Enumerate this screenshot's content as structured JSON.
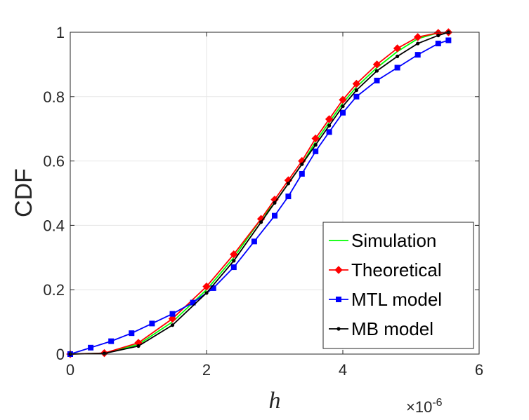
{
  "chart_data": {
    "type": "line",
    "title": "",
    "xlabel": "h",
    "ylabel": "CDF",
    "x_multiplier_label": "×10",
    "x_multiplier_exp": "-6",
    "xlim": [
      0,
      6
    ],
    "ylim": [
      0,
      1
    ],
    "xticks": [
      0,
      2,
      4,
      6
    ],
    "xtick_labels": [
      "0",
      "2",
      "4",
      "6"
    ],
    "yticks": [
      0,
      0.2,
      0.4,
      0.6,
      0.8,
      1
    ],
    "ytick_labels": [
      "0",
      "0.2",
      "0.4",
      "0.6",
      "0.8",
      "1"
    ],
    "grid": true,
    "legend_position": "bottom-right",
    "series": [
      {
        "name": "Simulation",
        "color": "#00ff00",
        "marker": "none",
        "x": [
          0,
          0.5,
          1.0,
          1.5,
          2.0,
          2.4,
          2.8,
          3.0,
          3.2,
          3.4,
          3.6,
          3.8,
          4.0,
          4.2,
          4.5,
          4.8,
          5.1,
          5.4,
          5.55
        ],
        "y": [
          0,
          0.003,
          0.03,
          0.1,
          0.2,
          0.3,
          0.42,
          0.47,
          0.53,
          0.59,
          0.66,
          0.72,
          0.78,
          0.83,
          0.89,
          0.94,
          0.98,
          0.998,
          1.0
        ]
      },
      {
        "name": "Theoretical",
        "color": "#ff0000",
        "marker": "diamond",
        "x": [
          0,
          0.5,
          1.0,
          1.5,
          2.0,
          2.4,
          2.8,
          3.0,
          3.2,
          3.4,
          3.6,
          3.8,
          4.0,
          4.2,
          4.5,
          4.8,
          5.1,
          5.4,
          5.55
        ],
        "y": [
          0,
          0.003,
          0.035,
          0.11,
          0.21,
          0.31,
          0.42,
          0.48,
          0.54,
          0.6,
          0.67,
          0.73,
          0.79,
          0.84,
          0.9,
          0.95,
          0.985,
          0.998,
          1.0
        ]
      },
      {
        "name": "MTL model",
        "color": "#0000ff",
        "marker": "square",
        "x": [
          0,
          0.3,
          0.6,
          0.9,
          1.2,
          1.5,
          1.8,
          2.1,
          2.4,
          2.7,
          3.0,
          3.2,
          3.4,
          3.6,
          3.8,
          4.0,
          4.2,
          4.5,
          4.8,
          5.1,
          5.4,
          5.55
        ],
        "y": [
          0,
          0.02,
          0.04,
          0.065,
          0.095,
          0.125,
          0.16,
          0.205,
          0.27,
          0.35,
          0.43,
          0.49,
          0.56,
          0.63,
          0.69,
          0.75,
          0.8,
          0.85,
          0.89,
          0.93,
          0.965,
          0.975
        ]
      },
      {
        "name": "MB model",
        "color": "#000000",
        "marker": "dot",
        "x": [
          0,
          0.5,
          1.0,
          1.5,
          2.0,
          2.4,
          2.8,
          3.0,
          3.2,
          3.4,
          3.6,
          3.8,
          4.0,
          4.2,
          4.5,
          4.8,
          5.1,
          5.4,
          5.55
        ],
        "y": [
          0,
          0.002,
          0.025,
          0.09,
          0.19,
          0.29,
          0.41,
          0.47,
          0.53,
          0.59,
          0.65,
          0.71,
          0.77,
          0.82,
          0.88,
          0.925,
          0.965,
          0.99,
          1.0
        ]
      }
    ]
  }
}
